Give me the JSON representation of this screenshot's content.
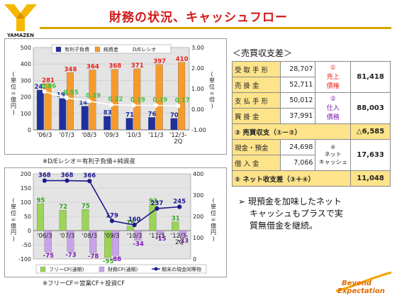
{
  "header": {
    "title": "財務の状況、キャッシュフロー",
    "logo_text": "YAMAZEN",
    "brand_tagline": [
      "Beyond",
      "Expectation"
    ]
  },
  "chart_data": [
    {
      "type": "bar",
      "categories": [
        "'06/3",
        "'07/3",
        "'08/3",
        "'09/3",
        "'10/3",
        "'11/3",
        "'12/3-2Q"
      ],
      "series": [
        {
          "name": "有利子負債",
          "values": [
            242,
            191,
            144,
            83,
            71,
            76,
            70
          ],
          "axis": "left",
          "color": "#1f2f9e"
        },
        {
          "name": "純資産",
          "values": [
            281,
            348,
            364,
            368,
            371,
            397,
            410
          ],
          "axis": "left",
          "color": "#f59b2d"
        },
        {
          "name": "D/Eレシオ",
          "values": [
            0.86,
            0.55,
            0.39,
            0.22,
            0.19,
            0.19,
            0.17
          ],
          "axis": "right",
          "type": "line",
          "color": "#ffffff"
        }
      ],
      "ylim": [
        0,
        500
      ],
      "y2lim": [
        -1.0,
        3.0
      ],
      "yticks": [
        "0",
        "100",
        "200",
        "300",
        "400",
        "500"
      ],
      "y2ticks": [
        "-1.00",
        "0.00",
        "1.00",
        "2.00",
        "3.00"
      ],
      "ylabel": "(単位=億円)",
      "y2label": "(単位=倍)",
      "note": "※D/Eレシオ＝有利子負債÷純資産"
    },
    {
      "type": "bar",
      "categories": [
        "'06/3",
        "'07/3",
        "'08/3",
        "'09/3",
        "'10/3",
        "'11/3",
        "'12/3-2Q"
      ],
      "series": [
        {
          "name": "フリーCF(通期)",
          "values": [
            95,
            72,
            75,
            -95,
            16,
            93,
            31
          ],
          "axis": "left",
          "color": "#9bd456"
        },
        {
          "name": "財務CF(通期)",
          "values": [
            -75,
            -73,
            -78,
            -88,
            -34,
            -15,
            -23
          ],
          "axis": "left",
          "color": "#c9a2ea"
        },
        {
          "name": "期末の現金同等物",
          "values": [
            368,
            368,
            366,
            179,
            160,
            237,
            245
          ],
          "axis": "right",
          "type": "line",
          "color": "#1a1a8c"
        }
      ],
      "ylim": [
        -100,
        200
      ],
      "y2lim": [
        0,
        400
      ],
      "yticks": [
        "-100",
        "-50",
        "0",
        "50",
        "100",
        "150",
        "200"
      ],
      "y2ticks": [
        "0",
        "100",
        "200",
        "300",
        "400"
      ],
      "ylabel": "(単位=億円)",
      "y2label": "(単位=億円)",
      "note": "※フリーCF＝営業CF＋投資CF"
    }
  ],
  "balance": {
    "title": "＜売買収支差＞",
    "rows": [
      {
        "label": "受取手形",
        "value": "28,707"
      },
      {
        "label": "売掛金",
        "value": "52,711"
      },
      {
        "label": "支払手形",
        "value": "50,012"
      },
      {
        "label": "買掛金",
        "value": "37,991"
      }
    ],
    "mark1": "①",
    "mark1_text": [
      "売上",
      "債権"
    ],
    "total1": "81,418",
    "mark2": "②",
    "mark2_text": [
      "仕入",
      "債務"
    ],
    "total2": "88,003",
    "diff_label": "③ 売買収支（①－②）",
    "diff_value": "△6,585",
    "cash_label": "現金・預金",
    "cash_value": "24,698",
    "loan_label": "借入金",
    "loan_value": "7,066",
    "mark4": "④",
    "mark4_text": [
      "ネット",
      "キャッシュ"
    ],
    "total4": "17,633",
    "net_label": "⑤ ネット收支差（③＋④）",
    "net_value": "11,048"
  },
  "bullet": {
    "symbol": "➢",
    "text": [
      "現預金を加味したネット",
      "キャッシュもプラスで実",
      "質無借金を継続。"
    ]
  }
}
